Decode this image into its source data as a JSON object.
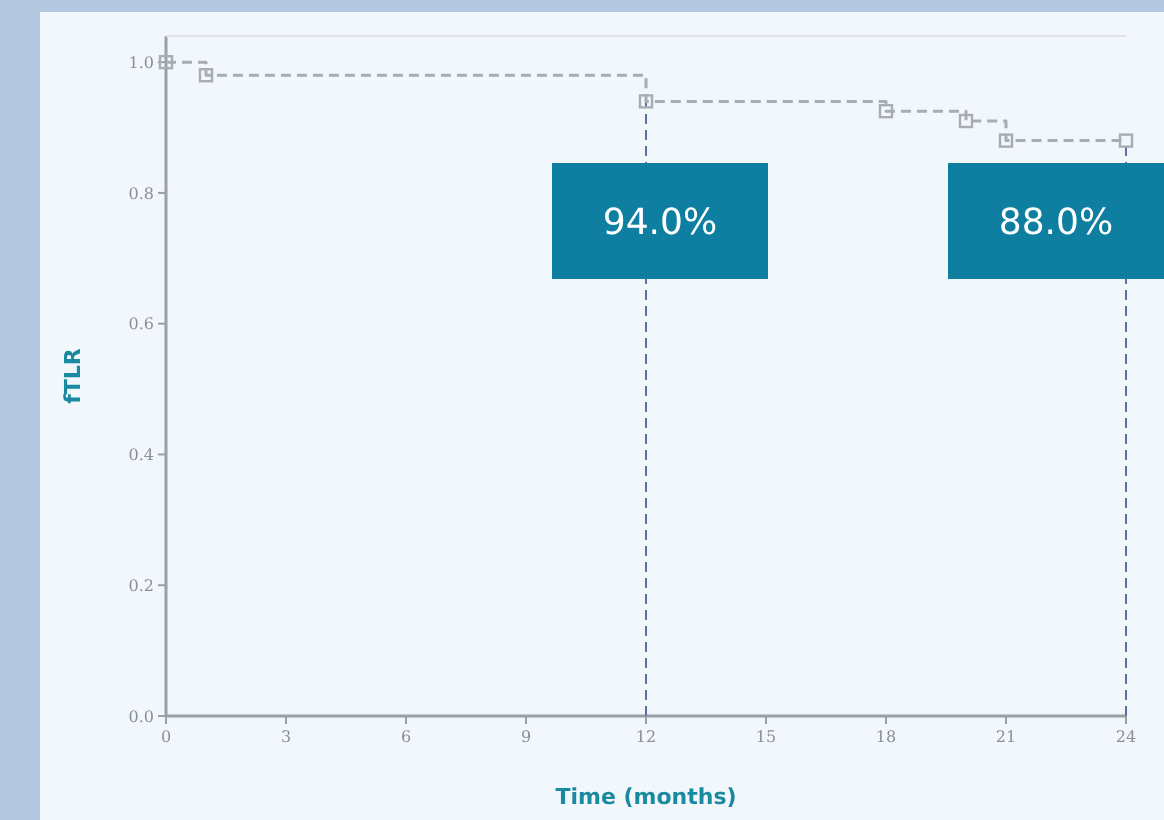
{
  "chart_data": {
    "type": "step",
    "xlabel": "Time (months)",
    "ylabel": "fTLR",
    "x": [
      0,
      1,
      12,
      18,
      20,
      21,
      24
    ],
    "series": [
      {
        "color": "#a8adb3",
        "values": [
          1.0,
          0.98,
          0.94,
          0.925,
          0.91,
          0.88,
          0.88
        ]
      }
    ],
    "xlim": [
      0,
      24
    ],
    "xticks": [
      0,
      3,
      6,
      9,
      12,
      15,
      18,
      21,
      24
    ],
    "ylim": [
      0,
      1.04
    ],
    "yticks": [
      {
        "value": 0,
        "label": "0.0"
      },
      {
        "value": 0.2,
        "label": "0.2"
      },
      {
        "value": 0.4,
        "label": "0.4"
      },
      {
        "value": 0.6,
        "label": "0.6"
      },
      {
        "value": 0.8,
        "label": "0.8"
      },
      {
        "value": 1,
        "label": "1.0"
      }
    ],
    "ref_lines": [
      {
        "axis": "x",
        "value": 12,
        "color": "#5a6fa8",
        "line_style": "dashed"
      },
      {
        "axis": "x",
        "value": 24,
        "color": "#5a6fa8",
        "line_style": "dashed"
      }
    ],
    "annotations": [
      {
        "text": "94.0%",
        "x": 12,
        "y": 0.94
      },
      {
        "text": "88.0%",
        "x": 24,
        "y": 0.88
      }
    ],
    "marker": "square",
    "line_style": "dashed",
    "grid": false
  }
}
